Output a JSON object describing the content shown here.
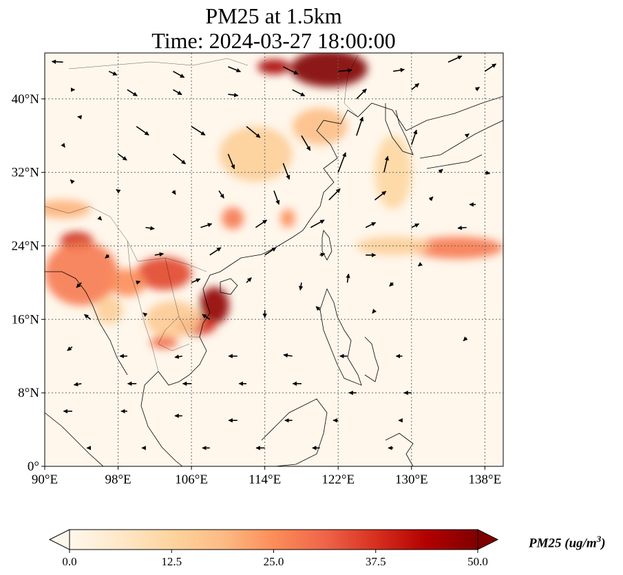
{
  "title": {
    "line1": "PM25 at 1.5km",
    "line2": "Time: 2024-03-27 18:00:00"
  },
  "map": {
    "type": "gridded-concentration-with-wind-vectors",
    "variable": "PM25",
    "extent": {
      "lon": [
        90,
        140
      ],
      "lat": [
        0,
        45
      ]
    },
    "lon_ticks": [
      {
        "value": 90,
        "label": "90°E"
      },
      {
        "value": 98,
        "label": "98°E"
      },
      {
        "value": 106,
        "label": "106°E"
      },
      {
        "value": 114,
        "label": "114°E"
      },
      {
        "value": 122,
        "label": "122°E"
      },
      {
        "value": 130,
        "label": "130°E"
      },
      {
        "value": 138,
        "label": "138°E"
      }
    ],
    "lat_ticks": [
      {
        "value": 0,
        "label": "0°"
      },
      {
        "value": 8,
        "label": "8°N"
      },
      {
        "value": 16,
        "label": "16°N"
      },
      {
        "value": 24,
        "label": "24°N"
      },
      {
        "value": 32,
        "label": "32°N"
      },
      {
        "value": 40,
        "label": "40°N"
      }
    ],
    "gridlines": true,
    "hotspots": [
      {
        "lon": 121,
        "lat": 43.3,
        "rlon": 4.2,
        "rlat": 2.0,
        "value": 50
      },
      {
        "lon": 115,
        "lat": 43.5,
        "rlon": 1.8,
        "rlat": 0.8,
        "value": 45
      },
      {
        "lon": 108.5,
        "lat": 17.5,
        "rlon": 1.6,
        "rlat": 2.0,
        "value": 48
      },
      {
        "lon": 106.5,
        "lat": 15.3,
        "rlon": 2.2,
        "rlat": 1.0,
        "value": 38
      },
      {
        "lon": 103,
        "lat": 13.5,
        "rlon": 1.5,
        "rlat": 0.7,
        "value": 30
      },
      {
        "lon": 93.5,
        "lat": 24.5,
        "rlon": 1.8,
        "rlat": 1.0,
        "value": 40
      },
      {
        "lon": 94,
        "lat": 21,
        "rlon": 4.0,
        "rlat": 3.5,
        "value": 28
      },
      {
        "lon": 103,
        "lat": 21,
        "rlon": 3.0,
        "rlat": 1.8,
        "value": 35
      },
      {
        "lon": 99,
        "lat": 20,
        "rlon": 2.0,
        "rlat": 1.5,
        "value": 25
      },
      {
        "lon": 110.5,
        "lat": 27,
        "rlon": 1.2,
        "rlat": 1.2,
        "value": 28
      },
      {
        "lon": 116.5,
        "lat": 27,
        "rlon": 0.8,
        "rlat": 1.0,
        "value": 25
      },
      {
        "lon": 135,
        "lat": 23.8,
        "rlon": 5.0,
        "rlat": 1.2,
        "value": 28
      },
      {
        "lon": 120,
        "lat": 37,
        "rlon": 3.0,
        "rlat": 2.0,
        "value": 18
      },
      {
        "lon": 113,
        "lat": 34,
        "rlon": 4.0,
        "rlat": 3.0,
        "value": 14
      },
      {
        "lon": 128,
        "lat": 24,
        "rlon": 4.0,
        "rlat": 1.0,
        "value": 14
      },
      {
        "lon": 128,
        "lat": 32,
        "rlon": 2.0,
        "rlat": 4.0,
        "value": 12
      },
      {
        "lon": 104,
        "lat": 16,
        "rlon": 3.0,
        "rlat": 2.0,
        "value": 15
      },
      {
        "lon": 92,
        "lat": 28,
        "rlon": 3.0,
        "rlat": 1.0,
        "value": 20
      },
      {
        "lon": 97,
        "lat": 17,
        "rlon": 1.5,
        "rlat": 1.5,
        "value": 14
      }
    ],
    "wind_vectors": [
      [
        92,
        44,
        -1.8,
        0.1
      ],
      [
        97,
        43,
        1.3,
        -0.6
      ],
      [
        104,
        43,
        1.8,
        -1.0
      ],
      [
        110,
        43.5,
        2.0,
        -0.8
      ],
      [
        116,
        43.5,
        2.4,
        -1.2
      ],
      [
        122,
        43,
        2.2,
        0.2
      ],
      [
        128,
        43,
        1.8,
        0.3
      ],
      [
        134,
        44,
        2.2,
        1.0
      ],
      [
        138,
        43,
        1.8,
        1.2
      ],
      [
        93,
        41,
        0.4,
        0.0
      ],
      [
        99,
        41,
        1.6,
        -1.0
      ],
      [
        104,
        41,
        1.4,
        -0.8
      ],
      [
        110,
        40.5,
        1.6,
        -0.2
      ],
      [
        117,
        41,
        2.0,
        -1.0
      ],
      [
        124,
        40,
        1.6,
        1.6
      ],
      [
        130,
        41,
        1.2,
        1.0
      ],
      [
        137,
        41,
        0.6,
        0.4
      ],
      [
        94,
        38,
        -0.6,
        0.1
      ],
      [
        100,
        37,
        2.0,
        -1.4
      ],
      [
        106,
        37,
        2.2,
        -1.4
      ],
      [
        112,
        37,
        2.2,
        -1.8
      ],
      [
        118,
        36,
        1.4,
        -2.4
      ],
      [
        124,
        36,
        1.0,
        3.0
      ],
      [
        130,
        35,
        0.8,
        2.4
      ],
      [
        136,
        36,
        0.4,
        0.3
      ],
      [
        92,
        35,
        0.3,
        -0.4
      ],
      [
        98,
        34,
        1.4,
        -1.0
      ],
      [
        104,
        34,
        2.0,
        -1.6
      ],
      [
        110,
        34,
        1.0,
        -2.4
      ],
      [
        116,
        33,
        1.0,
        -2.6
      ],
      [
        122,
        32,
        1.2,
        3.2
      ],
      [
        127,
        32,
        0.6,
        2.6
      ],
      [
        133,
        32,
        0.6,
        0.5
      ],
      [
        138,
        32,
        0.8,
        -0.2
      ],
      [
        93,
        31,
        -0.3,
        0.3
      ],
      [
        98,
        30,
        -0.3,
        0.2
      ],
      [
        104,
        30,
        0.4,
        -0.6
      ],
      [
        109,
        30,
        0.8,
        -1.2
      ],
      [
        115,
        30,
        0.8,
        -2.2
      ],
      [
        121,
        29,
        1.8,
        1.8
      ],
      [
        126,
        29,
        1.8,
        1.4
      ],
      [
        132,
        29,
        0.5,
        0.5
      ],
      [
        137,
        28.5,
        -1.0,
        0.0
      ],
      [
        96,
        27,
        0.3,
        -0.3
      ],
      [
        101,
        26,
        1.4,
        -0.2
      ],
      [
        107,
        26,
        1.8,
        0.6
      ],
      [
        113,
        26,
        1.8,
        1.2
      ],
      [
        119,
        26,
        2.2,
        1.2
      ],
      [
        125,
        26,
        1.6,
        0.8
      ],
      [
        130,
        26,
        1.2,
        0.6
      ],
      [
        136,
        26,
        -1.4,
        -0.1
      ],
      [
        97,
        23,
        -0.6,
        -0.5
      ],
      [
        102,
        23,
        1.4,
        0.2
      ],
      [
        108,
        23,
        1.8,
        1.2
      ],
      [
        114,
        23,
        1.8,
        1.2
      ],
      [
        120,
        23,
        0.8,
        0.2
      ],
      [
        125,
        23,
        1.6,
        0.0
      ],
      [
        131,
        22,
        -0.4,
        -0.3
      ],
      [
        94,
        20,
        -0.8,
        -0.8
      ],
      [
        100,
        20,
        0.6,
        0.2
      ],
      [
        106,
        20,
        1.4,
        0.6
      ],
      [
        112,
        20,
        0.8,
        0.8
      ],
      [
        118,
        20,
        -0.2,
        -1.2
      ],
      [
        123,
        20,
        0.2,
        1.4
      ],
      [
        128,
        20,
        -0.6,
        -0.6
      ],
      [
        95,
        16,
        -1.0,
        0.8
      ],
      [
        101,
        16.5,
        -0.4,
        0.3
      ],
      [
        108,
        16,
        -1.2,
        0.8
      ],
      [
        114,
        17,
        0.0,
        -1.2
      ],
      [
        120,
        17,
        -0.6,
        0.6
      ],
      [
        126,
        17,
        -0.4,
        -0.5
      ],
      [
        136,
        14,
        -0.5,
        -0.5
      ],
      [
        93,
        13,
        -0.8,
        -0.6
      ],
      [
        99,
        12,
        -1.2,
        0.0
      ],
      [
        105,
        12,
        -1.2,
        -0.2
      ],
      [
        111,
        12,
        -1.4,
        0.0
      ],
      [
        117,
        12,
        -1.4,
        0.2
      ],
      [
        123,
        12,
        -1.2,
        0.0
      ],
      [
        129,
        12,
        -1.0,
        0.0
      ],
      [
        94,
        9,
        -1.2,
        -0.2
      ],
      [
        100,
        9,
        -1.4,
        0.0
      ],
      [
        106,
        9,
        -1.4,
        0.0
      ],
      [
        112,
        9,
        -1.2,
        0.0
      ],
      [
        118,
        9,
        -1.4,
        0.0
      ],
      [
        124,
        8,
        -1.2,
        0.0
      ],
      [
        130,
        8,
        -1.2,
        0.0
      ],
      [
        93,
        6,
        -1.4,
        0.0
      ],
      [
        99,
        6,
        -1.0,
        0.0
      ],
      [
        105,
        5.5,
        -1.2,
        0.0
      ],
      [
        111,
        5,
        -1.4,
        0.0
      ],
      [
        117,
        5,
        -1.2,
        0.0
      ],
      [
        122,
        5,
        -0.8,
        0.0
      ],
      [
        129,
        5,
        -0.6,
        0.0
      ],
      [
        95,
        2,
        -0.6,
        0.0
      ],
      [
        101,
        2,
        -0.6,
        0.0
      ],
      [
        108,
        2,
        -1.2,
        0.0
      ],
      [
        114,
        2,
        -1.4,
        0.0
      ],
      [
        120,
        2,
        -1.2,
        0.0
      ],
      [
        128,
        2,
        -0.8,
        0.0
      ]
    ]
  },
  "colorbar": {
    "title": "PM25 (ug/m",
    "title_superscript": "3",
    "title_suffix": ")",
    "min": 0.0,
    "max": 50.0,
    "extend": "both",
    "colormap": "OrRd",
    "ticks": [
      {
        "value": 0,
        "label": "0.0"
      },
      {
        "value": 12.5,
        "label": "12.5"
      },
      {
        "value": 25,
        "label": "25.0"
      },
      {
        "value": 37.5,
        "label": "37.5"
      },
      {
        "value": 50,
        "label": "50.0"
      }
    ],
    "colors": [
      "#fff7ec",
      "#fee8c8",
      "#fdd49e",
      "#fdbb84",
      "#fc8d59",
      "#ef6548",
      "#d7301f",
      "#b30000",
      "#7f0000"
    ]
  }
}
